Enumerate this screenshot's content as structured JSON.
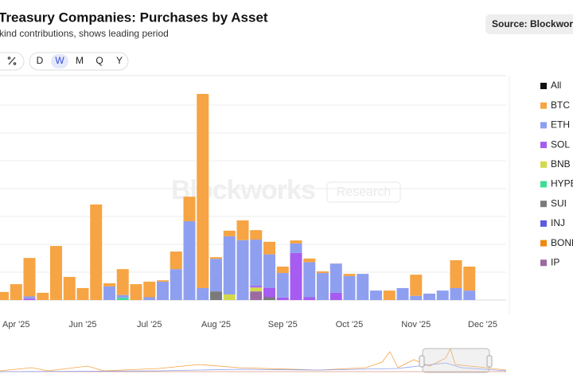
{
  "chart_data": {
    "type": "stacked_bar",
    "title": "Treasury Companies: Purchases by Asset",
    "subtitle": "kind contributions, shows leading period",
    "categories": [
      null,
      "Apr '25",
      null,
      null,
      null,
      null,
      "Jun '25",
      null,
      null,
      null,
      null,
      "Jul '25",
      null,
      null,
      null,
      null,
      "Aug '25",
      null,
      null,
      null,
      null,
      "Sep '25",
      null,
      null,
      null,
      null,
      "Oct '25",
      null,
      null,
      null,
      null,
      "Nov '25",
      null,
      null,
      null,
      null,
      "Dec '25"
    ],
    "ylim": [
      0,
      8
    ],
    "yticks": [
      0,
      1,
      2,
      3,
      4,
      5,
      6,
      7
    ],
    "grid": true,
    "all_label": "All",
    "series": [
      {
        "name": "BTC",
        "color": "#f6a444",
        "values": [
          0.29,
          0.57,
          1.38,
          0.26,
          1.94,
          0.83,
          0.43,
          3.43,
          0.11,
          0.93,
          0.57,
          0.56,
          0.05,
          0.63,
          0.88,
          6.97,
          0.06,
          0.2,
          0.71,
          0.34,
          0.45,
          0.23,
          0.11,
          0.13,
          0.06,
          null,
          0.08,
          null,
          null,
          0.34,
          null,
          0.76,
          null,
          null,
          1.0,
          0.86,
          null
        ]
      },
      {
        "name": "ETH",
        "color": "#8f9ff0",
        "values": [
          null,
          null,
          0.08,
          null,
          null,
          null,
          null,
          null,
          0.49,
          0.1,
          null,
          0.1,
          0.66,
          1.11,
          2.83,
          0.43,
          1.17,
          2.09,
          2.15,
          1.66,
          1.2,
          0.88,
          0.34,
          1.26,
          0.97,
          1.05,
          0.86,
          0.94,
          0.34,
          null,
          0.43,
          0.15,
          0.23,
          0.34,
          0.43,
          0.34,
          null
        ]
      },
      {
        "name": "SOL",
        "color": "#a65cf0",
        "values": [
          null,
          null,
          0.05,
          null,
          null,
          null,
          null,
          null,
          null,
          null,
          null,
          null,
          null,
          null,
          null,
          null,
          null,
          null,
          null,
          0.06,
          0.34,
          0.09,
          1.69,
          0.1,
          null,
          0.26,
          null,
          null,
          null,
          null,
          null,
          null,
          null,
          null,
          null,
          null,
          null
        ]
      },
      {
        "name": "BNB",
        "color": "#d3d94a",
        "values": [
          null,
          null,
          null,
          null,
          null,
          null,
          null,
          null,
          null,
          null,
          null,
          null,
          null,
          null,
          null,
          null,
          null,
          0.2,
          null,
          0.14,
          null,
          null,
          null,
          null,
          null,
          null,
          null,
          null,
          null,
          null,
          null,
          null,
          null,
          null,
          null,
          null,
          null
        ]
      },
      {
        "name": "HYPE",
        "color": "#3ddc97",
        "values": [
          null,
          null,
          null,
          null,
          null,
          null,
          null,
          null,
          null,
          0.08,
          null,
          null,
          null,
          null,
          null,
          null,
          null,
          null,
          null,
          null,
          null,
          null,
          null,
          null,
          null,
          null,
          null,
          null,
          null,
          null,
          null,
          null,
          null,
          null,
          null,
          null,
          null
        ]
      },
      {
        "name": "SUI",
        "color": "#7a7a7a",
        "values": [
          null,
          null,
          null,
          null,
          null,
          null,
          null,
          null,
          null,
          null,
          null,
          null,
          null,
          null,
          null,
          null,
          0.31,
          null,
          null,
          null,
          0.1,
          null,
          null,
          null,
          null,
          null,
          null,
          null,
          null,
          null,
          null,
          null,
          null,
          null,
          null,
          null,
          null
        ]
      },
      {
        "name": "INJ",
        "color": "#5c5ce0",
        "values": [
          null,
          null,
          null,
          null,
          null,
          null,
          null,
          null,
          null,
          null,
          null,
          null,
          null,
          null,
          null,
          null,
          null,
          null,
          null,
          null,
          null,
          null,
          null,
          null,
          null,
          null,
          null,
          null,
          null,
          null,
          null,
          null,
          null,
          null,
          null,
          null,
          null
        ]
      },
      {
        "name": "BONK",
        "color": "#f0890f",
        "values": [
          null,
          null,
          null,
          null,
          null,
          null,
          null,
          null,
          null,
          null,
          null,
          null,
          null,
          null,
          null,
          null,
          null,
          null,
          null,
          null,
          null,
          null,
          null,
          null,
          null,
          null,
          null,
          null,
          null,
          null,
          null,
          null,
          null,
          null,
          null,
          null,
          null
        ]
      },
      {
        "name": "IP",
        "color": "#9a6aa0",
        "values": [
          null,
          null,
          null,
          null,
          null,
          null,
          null,
          null,
          null,
          null,
          null,
          null,
          null,
          null,
          null,
          null,
          null,
          null,
          null,
          0.31,
          null,
          null,
          null,
          null,
          null,
          null,
          null,
          null,
          null,
          null,
          null,
          null,
          null,
          null,
          null,
          null,
          null
        ]
      }
    ]
  },
  "source": "Source: Blockworks",
  "toolbar": {
    "periods": [
      "D",
      "W",
      "M",
      "Q",
      "Y"
    ],
    "selected": "W"
  },
  "watermark": {
    "brand": "Blockworks",
    "tag": "Research"
  }
}
